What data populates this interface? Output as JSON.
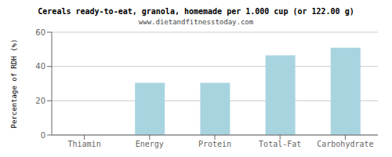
{
  "chart_data": {
    "type": "bar",
    "title": "Cereals ready-to-eat, granola, homemade per 1.000 cup (or 122.00 g)",
    "subtitle": "www.dietandfitnesstoday.com",
    "categories": [
      "Thiamin",
      "Energy",
      "Protein",
      "Total-Fat",
      "Carbohydrate"
    ],
    "values": [
      0,
      30.5,
      30.5,
      46.5,
      51.0
    ],
    "color": "#a8d4e0",
    "ylabel": "Percentage of RDH (%)",
    "ylim": [
      0,
      60
    ],
    "yticks": [
      0,
      20,
      40,
      60
    ],
    "grid": true
  }
}
